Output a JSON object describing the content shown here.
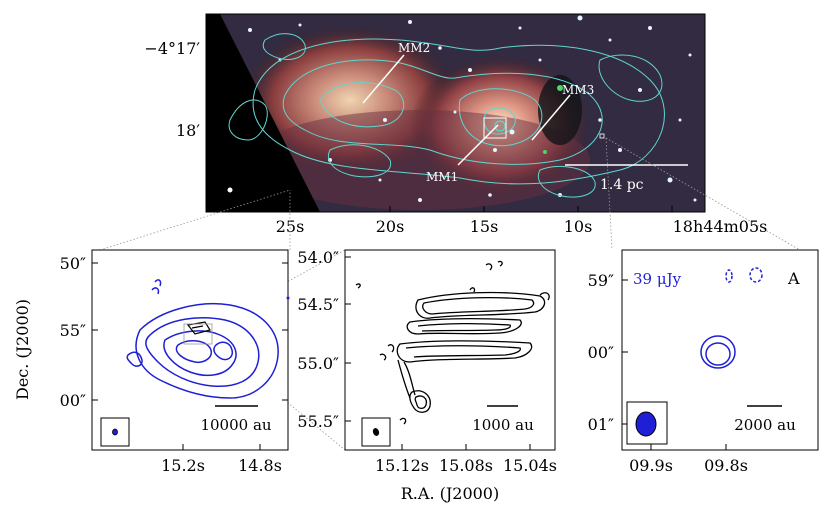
{
  "colors": {
    "cyan": "#5fd6d0",
    "blue": "#1f1fd6",
    "black": "#000000",
    "white": "#ffffff"
  },
  "ylabel": "Dec. (J2000)",
  "xlabel": "R.A. (J2000)",
  "top": {
    "dec_ticks": [
      "−4°17′",
      "18′"
    ],
    "ra_ticks": [
      "25s",
      "20s",
      "15s",
      "10s",
      "18h44m05s"
    ],
    "labels": {
      "mm1": "MM1",
      "mm2": "MM2",
      "mm3": "MM3"
    },
    "scalebar": "1.4 pc"
  },
  "panel_left": {
    "y_ticks": [
      "50″",
      "55″",
      "00″"
    ],
    "x_ticks": [
      "15.2s",
      "14.8s"
    ],
    "scalebar": "10000 au"
  },
  "panel_mid": {
    "y_ticks": [
      "54.0″",
      "54.5″",
      "55.0″",
      "55.5″"
    ],
    "x_ticks": [
      "15.12s",
      "15.08s",
      "15.04s"
    ],
    "scalebar": "1000 au"
  },
  "panel_right": {
    "y_ticks": [
      "59″",
      "00″",
      "01″"
    ],
    "x_ticks": [
      "09.9s",
      "09.8s"
    ],
    "scalebar": "2000 au",
    "noise": "39 μJy",
    "panel_letter": "A"
  }
}
